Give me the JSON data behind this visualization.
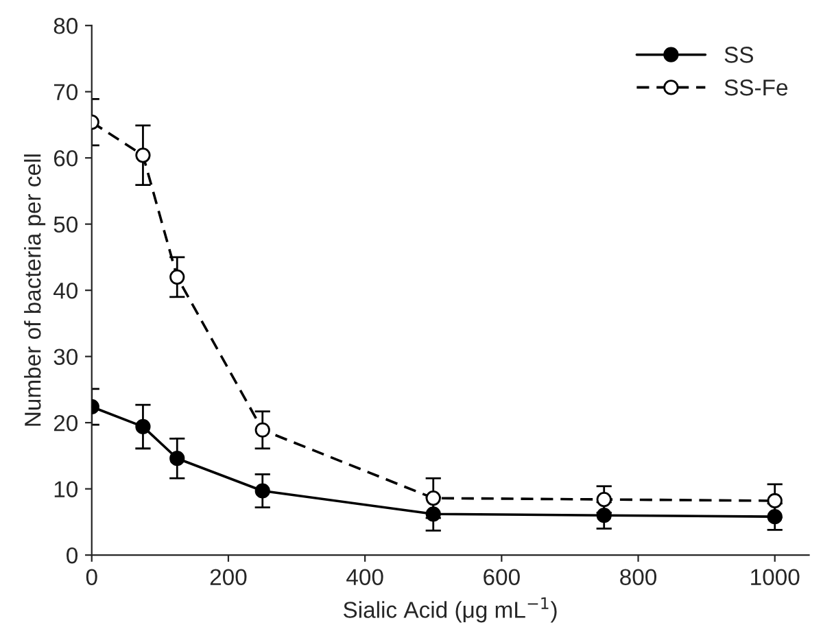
{
  "chart_data": {
    "type": "line",
    "xlabel": "Sialic Acid (μg mL$^{−1}$)",
    "ylabel": "Number of bacteria per cell",
    "x": [
      0,
      75,
      125,
      250,
      500,
      750,
      1000
    ],
    "series": [
      {
        "name": "SS",
        "color": "#000000",
        "values": [
          22.4,
          19.4,
          14.6,
          9.7,
          6.2,
          6.0,
          5.8
        ],
        "errors": [
          2.7,
          3.3,
          3.0,
          2.5,
          2.5,
          2.0,
          2.0
        ],
        "marker": "circle",
        "line_style": "solid"
      },
      {
        "name": "SS-Fe",
        "color": "#000000",
        "values": [
          65.4,
          60.4,
          42.0,
          18.9,
          8.6,
          8.4,
          8.2
        ],
        "errors": [
          3.5,
          4.5,
          3.0,
          2.8,
          3.0,
          2.0,
          2.5
        ],
        "marker": "circle",
        "line_style": "dashed"
      }
    ],
    "xlim": [
      0,
      1050
    ],
    "xticks": [
      0,
      200,
      400,
      600,
      800,
      1000
    ],
    "ylim": [
      0,
      80
    ],
    "yticks": [
      0,
      10,
      20,
      30,
      40,
      50,
      60,
      70,
      80
    ],
    "legend": "top right",
    "grid": false
  }
}
